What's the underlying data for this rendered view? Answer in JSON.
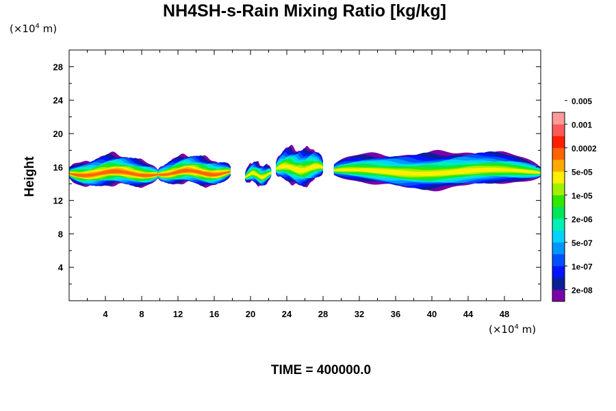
{
  "chart_data": {
    "type": "heatmap",
    "title": "NH4SH-s-Rain Mixing Ratio [kg/kg]",
    "ylabel": "Height",
    "x_unit": {
      "prefix": "(×10",
      "exp": "4",
      "suffix": " m)"
    },
    "y_unit": {
      "prefix": "(×10",
      "exp": "4",
      "suffix": " m)"
    },
    "footer": "TIME = 400000.0",
    "xlim": [
      0,
      52
    ],
    "ylim": [
      0,
      30
    ],
    "x_ticks": [
      4,
      8,
      12,
      16,
      20,
      24,
      28,
      32,
      36,
      40,
      44,
      48
    ],
    "y_ticks": [
      4,
      8,
      12,
      16,
      20,
      24,
      28
    ],
    "colorbar": {
      "colors": [
        "#7b00a8",
        "#0b1f96",
        "#0014ff",
        "#0050ff",
        "#0096ff",
        "#00d2ff",
        "#00f0b4",
        "#00e65a",
        "#32e600",
        "#a0f000",
        "#ffef00",
        "#ffaa00",
        "#ff6400",
        "#ff1e00",
        "#ff5a5a",
        "#ff9a9a"
      ],
      "labels": [
        "2e-08",
        "1e-07",
        "5e-07",
        "2e-06",
        "1e-05",
        "5e-05",
        "0.0002",
        "0.001",
        "0.005"
      ]
    },
    "field_regions": [
      {
        "x": [
          0,
          9.8
        ],
        "center": 15.2,
        "half_thickness": 1.8,
        "peak_level": 12
      },
      {
        "x": [
          9.8,
          17.8
        ],
        "center": 15.3,
        "half_thickness": 1.7,
        "peak_level": 12
      },
      {
        "x": [
          19.4,
          22.3
        ],
        "center": 15.0,
        "half_thickness": 1.3,
        "peak_level": 10
      },
      {
        "x": [
          22.8,
          28.0
        ],
        "center": 15.8,
        "half_thickness": 2.2,
        "peak_level": 10
      },
      {
        "x": [
          29.2,
          52
        ],
        "center": 15.4,
        "half_thickness": 2.1,
        "peak_level": 10
      }
    ]
  }
}
